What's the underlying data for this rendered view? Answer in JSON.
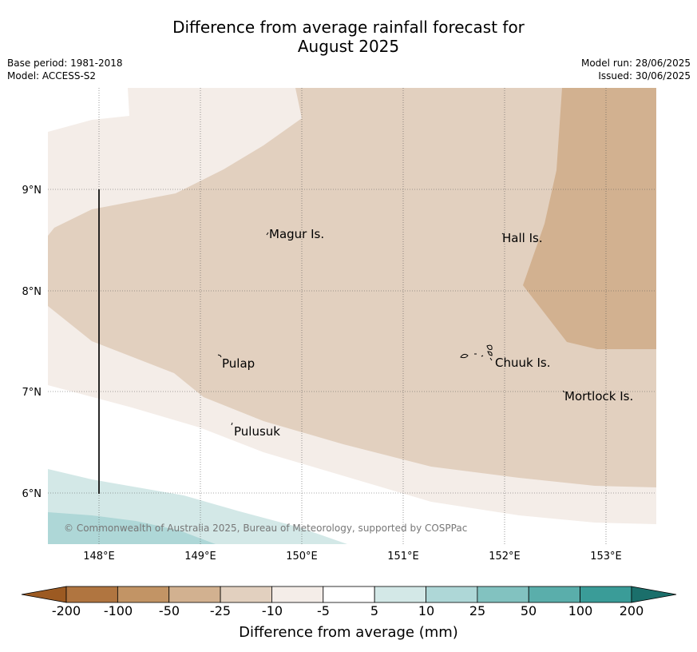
{
  "header": {
    "title_line1": "Difference from average rainfall forecast for",
    "title_line2": "August 2025",
    "base_period": "Base period: 1981-2018",
    "model": "Model: ACCESS-S2",
    "model_run": "Model run: 28/06/2025",
    "issued": "Issued: 30/06/2025"
  },
  "map": {
    "lon_labels": [
      "148°E",
      "149°E",
      "150°E",
      "151°E",
      "152°E",
      "153°E"
    ],
    "lat_labels": [
      "9°N",
      "8°N",
      "7°N",
      "6°N"
    ],
    "places": [
      "Magur Is.",
      "Hall Is.",
      "Pulap",
      "Chuuk Is.",
      "Mortlock Is.",
      "Pulusuk"
    ],
    "copyright": "© Commonwealth of Australia 2025, Bureau of Meteorology, supported by COSPPac"
  },
  "colorbar": {
    "tick_labels": [
      "-200",
      "-100",
      "-50",
      "-25",
      "-10",
      "-5",
      "5",
      "10",
      "25",
      "50",
      "100",
      "200"
    ],
    "colors": [
      "#9c5a22",
      "#b07540",
      "#c29465",
      "#d2b190",
      "#e2d0bf",
      "#f4ede8",
      "#ffffff",
      "#d3e8e7",
      "#aed7d7",
      "#82c2c0",
      "#5aaeab",
      "#3a9c98",
      "#1b6f6b"
    ],
    "title": "Difference from average (mm)"
  }
}
